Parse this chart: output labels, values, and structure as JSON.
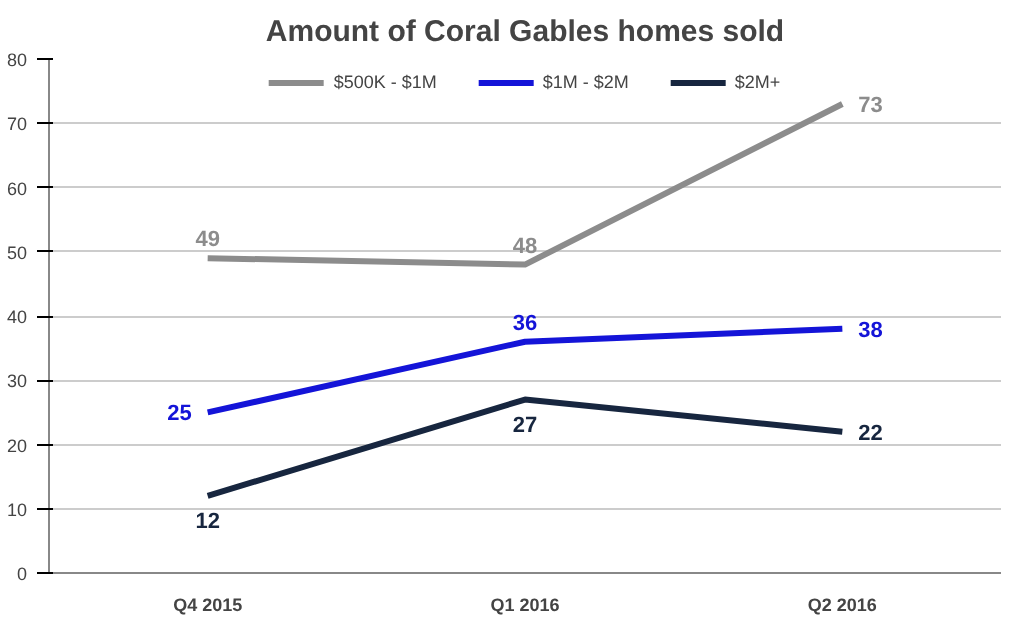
{
  "chart_data": {
    "type": "line",
    "title": "Amount of Coral Gables homes sold",
    "categories": [
      "Q4 2015",
      "Q1 2016",
      "Q2 2016"
    ],
    "series": [
      {
        "name": "$500K - $1M",
        "color": "#8c8c8c",
        "values": [
          49,
          48,
          73
        ]
      },
      {
        "name": "$1M - $2M",
        "color": "#1414d8",
        "values": [
          25,
          36,
          38
        ]
      },
      {
        "name": "$2M+",
        "color": "#17263f",
        "values": [
          12,
          27,
          22
        ]
      }
    ],
    "ylim": [
      0,
      80
    ],
    "yticks": [
      0,
      10,
      20,
      30,
      40,
      50,
      60,
      70,
      80
    ],
    "grid": "y",
    "legend": "top",
    "data_labels": true,
    "marker": "none"
  }
}
